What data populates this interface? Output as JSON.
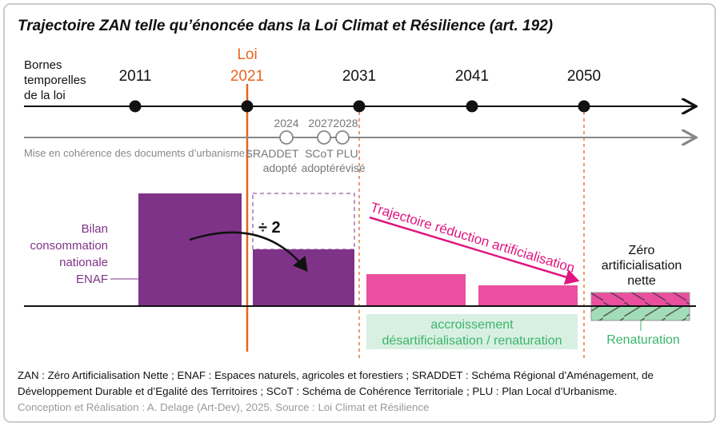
{
  "title": "Trajectoire ZAN telle qu’énoncée dans la Loi Climat et Résilience (art. 192)",
  "timeline": {
    "label": [
      "Bornes",
      "temporelles",
      "de la loi"
    ],
    "years": [
      "2011",
      "2021",
      "2031",
      "2041",
      "2050"
    ],
    "loi_label": "Loi",
    "loi_color": "#e8651e"
  },
  "documents": {
    "label": "Mise en cohérence des documents d’urbanisme :",
    "milestones": [
      {
        "year": "2024",
        "line1": "SRADDET",
        "line2": "adopté"
      },
      {
        "year": "2027",
        "line1": "SCoT",
        "line2": "adopté"
      },
      {
        "year": "2028",
        "line1": "PLU",
        "line2": "révisé"
      }
    ]
  },
  "bars": {
    "bilan_label": [
      "Bilan",
      "consommation",
      "nationale",
      "ENAF"
    ],
    "divide_label": "÷ 2",
    "trajectory_label": "Trajectoire réduction artificialisation",
    "zan_label": [
      "Zéro",
      "artificialisation",
      "nette"
    ],
    "renaturation_label": "Renaturation",
    "accroissement_label": [
      "accroissement",
      "désartificialisation / renaturation"
    ],
    "colors": {
      "purple": "#7f3388",
      "pink": "#ea4fa0",
      "magenta": "#e0157f",
      "green": "#3bb56c",
      "green_light": "#d8f0e1",
      "green_fill": "#a3dcb8"
    }
  },
  "footer": {
    "line1": "ZAN : Zéro Artificialisation Nette ; ENAF : Espaces naturels, agricoles et forestiers ; SRADDET : Schéma Régional d’Aménagement, de",
    "line2": "Développement Durable et d’Egalité des Territoires ; SCoT : Schéma de Cohérence Territoriale ; PLU : Plan Local d’Urbanisme.",
    "credit": "Conception et Réalisation : A. Delage (Art-Dev), 2025. Source : Loi Climat et Résilience"
  }
}
